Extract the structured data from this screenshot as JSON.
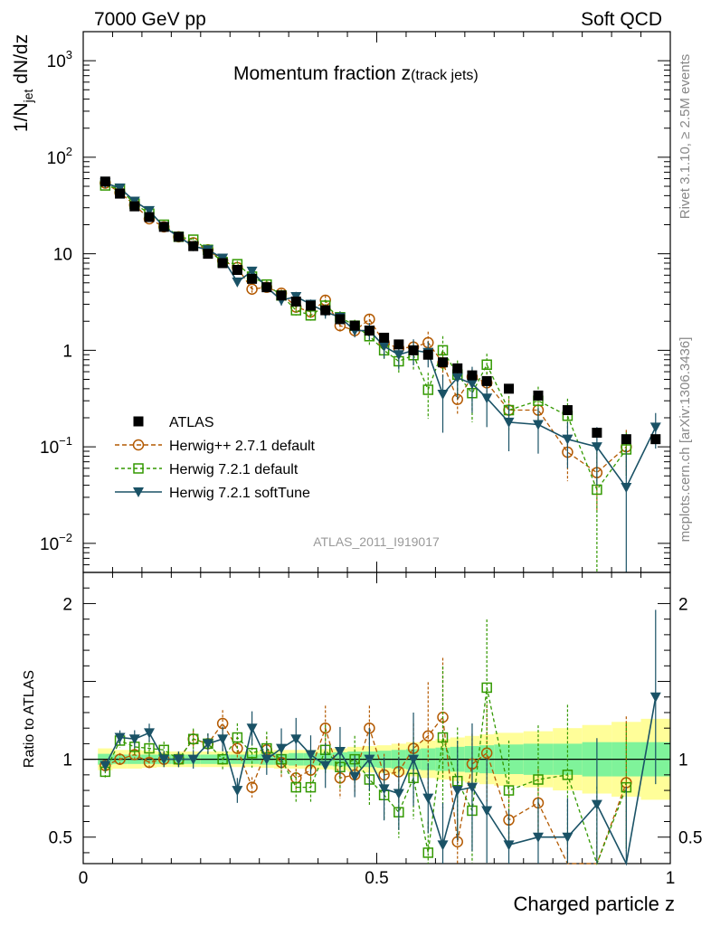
{
  "header": {
    "left": "7000 GeV pp",
    "right": "Soft QCD"
  },
  "side_text": {
    "rivet": "Rivet 3.1.10, ≥ 2.5M events",
    "mcplots": "mcplots.cern.ch [arXiv:1306.3436]"
  },
  "chart_data": [
    {
      "type": "scatter",
      "title": "Momentum fraction z",
      "title_sub": "(track jets)",
      "ylabel": "1/N",
      "ylabel_sub": "jet",
      "ylabel_rest": " dN/dz",
      "analysis": "ATLAS_2011_I919017",
      "yscale": "log",
      "xlim": [
        0,
        1
      ],
      "ylim": [
        0.005,
        2000
      ],
      "y_ticks": [
        {
          "label": "10",
          "exp": "3",
          "value": 1000
        },
        {
          "label": "10",
          "exp": "2",
          "value": 100
        },
        {
          "label": "10",
          "exp": "",
          "value": 10
        },
        {
          "label": "1",
          "exp": "",
          "value": 1
        },
        {
          "label": "10",
          "exp": "−1",
          "value": 0.1
        },
        {
          "label": "10",
          "exp": "−2",
          "value": 0.01
        }
      ],
      "legend_position": "lower-left",
      "x": [
        0.0375,
        0.0625,
        0.0875,
        0.1125,
        0.1375,
        0.1625,
        0.1875,
        0.2125,
        0.2375,
        0.2625,
        0.2875,
        0.3125,
        0.3375,
        0.3625,
        0.3875,
        0.4125,
        0.4375,
        0.4625,
        0.4875,
        0.5125,
        0.5375,
        0.5625,
        0.5875,
        0.6125,
        0.6375,
        0.6625,
        0.6875,
        0.725,
        0.775,
        0.825,
        0.875,
        0.925,
        0.975
      ],
      "series": [
        {
          "name": "ATLAS",
          "style": "data",
          "color": "#000000",
          "values": [
            56,
            42,
            31,
            24,
            19,
            15,
            12,
            10,
            8,
            6.8,
            5.5,
            4.5,
            3.7,
            3.2,
            2.9,
            2.6,
            2.1,
            1.8,
            1.6,
            1.35,
            1.15,
            1.0,
            0.9,
            0.75,
            0.65,
            0.55,
            0.48,
            0.4,
            0.34,
            0.24,
            0.14,
            0.12,
            0.12
          ],
          "err": [
            0,
            0,
            0,
            0,
            0,
            0,
            0,
            0,
            0,
            0,
            0,
            0,
            0,
            0,
            0,
            0,
            0,
            0,
            0,
            0,
            0,
            0,
            0,
            0,
            0,
            0,
            0,
            0,
            0,
            0,
            0,
            0,
            0
          ]
        },
        {
          "name": "Herwig++ 2.7.1 default",
          "style": "circle",
          "color": "#b35900",
          "values": [
            54,
            43,
            32,
            23,
            19,
            15,
            13,
            11,
            8.5,
            7.2,
            4.3,
            4.5,
            3.9,
            2.8,
            2.5,
            3.3,
            1.8,
            1.6,
            2.1,
            1.2,
            1.05,
            1.08,
            1.2,
            0.74,
            0.31,
            0.53,
            0.46,
            0.24,
            0.24,
            0.088,
            0.054,
            0.1,
            null
          ],
          "err": [
            0.04,
            0.04,
            0.04,
            0.04,
            0.05,
            0.05,
            0.05,
            0.06,
            0.07,
            0.07,
            0.08,
            0.08,
            0.1,
            0.1,
            0.1,
            0.12,
            0.15,
            0.12,
            0.12,
            0.15,
            0.2,
            0.15,
            0.3,
            0.3,
            0.3,
            0.2,
            0.3,
            0.3,
            0.3,
            0.5,
            0.6,
            0.5,
            0
          ]
        },
        {
          "name": "Herwig 7.2.1 default",
          "style": "square",
          "color": "#339900",
          "values": [
            51,
            47,
            33,
            26,
            20,
            15,
            14,
            11,
            8.2,
            7.8,
            5.8,
            4.8,
            3.7,
            2.6,
            2.3,
            2.9,
            2.2,
            1.8,
            1.4,
            1.0,
            0.77,
            0.89,
            0.39,
            1.0,
            0.56,
            0.36,
            0.71,
            0.24,
            0.3,
            0.21,
            0.036,
            0.094,
            null
          ],
          "err": [
            0.04,
            0.04,
            0.05,
            0.05,
            0.05,
            0.05,
            0.06,
            0.06,
            0.07,
            0.08,
            0.09,
            0.1,
            0.1,
            0.12,
            0.12,
            0.15,
            0.15,
            0.15,
            0.2,
            0.2,
            0.25,
            0.3,
            0.5,
            0.4,
            0.4,
            0.5,
            0.3,
            0.4,
            0.4,
            0.5,
            1.5,
            0.5,
            0
          ]
        },
        {
          "name": "Herwig 7.2.1 softTune",
          "style": "triangle",
          "color": "#1a5266",
          "values": [
            54,
            48,
            35,
            28,
            19,
            15,
            12,
            11,
            9,
            5.1,
            6.6,
            4.5,
            3.3,
            3.6,
            3.0,
            2.5,
            2.2,
            1.6,
            1.6,
            1.1,
            0.9,
            1.0,
            0.95,
            0.35,
            0.52,
            0.45,
            0.32,
            0.18,
            0.17,
            0.12,
            0.1,
            0.038,
            0.16
          ],
          "err": [
            0.04,
            0.04,
            0.05,
            0.05,
            0.05,
            0.05,
            0.06,
            0.06,
            0.07,
            0.1,
            0.09,
            0.1,
            0.12,
            0.12,
            0.12,
            0.15,
            0.15,
            0.15,
            0.2,
            0.25,
            0.3,
            0.3,
            0.3,
            0.6,
            0.4,
            0.5,
            0.5,
            0.5,
            0.5,
            0.5,
            0.6,
            1.5,
            0.4
          ]
        }
      ]
    },
    {
      "type": "scatter",
      "ylabel": "Ratio to ATLAS",
      "xlabel": "Charged particle z",
      "xlim": [
        0,
        1
      ],
      "ylim": [
        0.33,
        2.2
      ],
      "x_ticks": [
        {
          "label": "0",
          "value": 0
        },
        {
          "label": "0.5",
          "value": 0.5
        },
        {
          "label": "1",
          "value": 1
        }
      ],
      "y_ticks": [
        {
          "label": "2",
          "value": 2
        },
        {
          "label": "1",
          "value": 1
        },
        {
          "label": "0.5",
          "value": 0.5
        }
      ],
      "band_colors": {
        "inner": "#7ff39a",
        "outer": "#fffe99"
      },
      "band_edges": [
        0.025,
        0.05,
        0.075,
        0.1,
        0.125,
        0.15,
        0.175,
        0.2,
        0.225,
        0.25,
        0.275,
        0.3,
        0.325,
        0.35,
        0.375,
        0.4,
        0.425,
        0.45,
        0.475,
        0.5,
        0.525,
        0.55,
        0.575,
        0.6,
        0.625,
        0.65,
        0.675,
        0.7,
        0.75,
        0.8,
        0.85,
        0.9,
        0.95,
        1.0
      ],
      "band_inner": [
        0.035,
        0.03,
        0.03,
        0.03,
        0.03,
        0.03,
        0.03,
        0.03,
        0.03,
        0.03,
        0.03,
        0.035,
        0.035,
        0.04,
        0.04,
        0.04,
        0.045,
        0.05,
        0.05,
        0.055,
        0.06,
        0.065,
        0.07,
        0.075,
        0.08,
        0.085,
        0.09,
        0.095,
        0.1,
        0.1,
        0.11,
        0.11,
        0.11
      ],
      "band_outer": [
        0.07,
        0.06,
        0.06,
        0.055,
        0.05,
        0.05,
        0.05,
        0.05,
        0.05,
        0.05,
        0.05,
        0.055,
        0.06,
        0.06,
        0.06,
        0.065,
        0.07,
        0.08,
        0.085,
        0.09,
        0.1,
        0.11,
        0.12,
        0.13,
        0.14,
        0.15,
        0.16,
        0.17,
        0.18,
        0.2,
        0.22,
        0.24,
        0.26
      ],
      "series": [
        {
          "name": "Herwig++ 2.7.1 default",
          "style": "circle",
          "color": "#b35900",
          "x": [
            0.0375,
            0.0625,
            0.0875,
            0.1125,
            0.1375,
            0.1625,
            0.1875,
            0.2125,
            0.2375,
            0.2625,
            0.2875,
            0.3125,
            0.3375,
            0.3625,
            0.3875,
            0.4125,
            0.4375,
            0.4625,
            0.4875,
            0.5125,
            0.5375,
            0.5625,
            0.5875,
            0.6125,
            0.6375,
            0.6625,
            0.6875,
            0.725,
            0.775,
            0.825,
            0.875,
            0.925
          ],
          "values": [
            0.96,
            1.0,
            1.03,
            0.98,
            1.0,
            1.0,
            1.13,
            1.1,
            1.23,
            1.07,
            0.82,
            1.06,
            0.98,
            0.88,
            0.93,
            1.2,
            0.88,
            0.9,
            1.2,
            0.9,
            0.92,
            1.07,
            1.15,
            1.27,
            0.47,
            0.97,
            1.04,
            0.61,
            0.72,
            0.33,
            0.33,
            0.85
          ],
          "err": [
            0.04,
            0.04,
            0.04,
            0.04,
            0.05,
            0.05,
            0.05,
            0.06,
            0.07,
            0.07,
            0.08,
            0.08,
            0.1,
            0.1,
            0.1,
            0.12,
            0.15,
            0.12,
            0.12,
            0.15,
            0.2,
            0.15,
            0.3,
            0.3,
            0.3,
            0.2,
            0.3,
            0.3,
            0.3,
            0.5,
            0.6,
            0.5
          ]
        },
        {
          "name": "Herwig 7.2.1 default",
          "style": "square",
          "color": "#339900",
          "x": [
            0.0375,
            0.0625,
            0.0875,
            0.1125,
            0.1375,
            0.1625,
            0.1875,
            0.2125,
            0.2375,
            0.2625,
            0.2875,
            0.3125,
            0.3375,
            0.3625,
            0.3875,
            0.4125,
            0.4375,
            0.4625,
            0.4875,
            0.5125,
            0.5375,
            0.5625,
            0.5875,
            0.6125,
            0.6375,
            0.6625,
            0.6875,
            0.725,
            0.775,
            0.825,
            0.875,
            0.925
          ],
          "values": [
            0.92,
            1.12,
            1.08,
            1.07,
            1.06,
            1.0,
            1.13,
            1.1,
            1.0,
            1.14,
            1.04,
            1.07,
            1.0,
            0.82,
            0.82,
            1.06,
            0.95,
            1.0,
            0.87,
            0.77,
            0.66,
            0.88,
            0.4,
            1.14,
            0.86,
            0.67,
            1.46,
            0.8,
            0.87,
            0.9,
            0.33,
            0.82
          ],
          "err": [
            0.04,
            0.04,
            0.05,
            0.05,
            0.05,
            0.05,
            0.06,
            0.06,
            0.07,
            0.08,
            0.09,
            0.1,
            0.1,
            0.12,
            0.12,
            0.15,
            0.15,
            0.15,
            0.2,
            0.2,
            0.25,
            0.3,
            0.5,
            0.4,
            0.4,
            0.5,
            0.3,
            0.4,
            0.4,
            0.5,
            1.5,
            0.5
          ]
        },
        {
          "name": "Herwig 7.2.1 softTune",
          "style": "triangle",
          "color": "#1a5266",
          "x": [
            0.0375,
            0.0625,
            0.0875,
            0.1125,
            0.1375,
            0.1625,
            0.1875,
            0.2125,
            0.2375,
            0.2625,
            0.2875,
            0.3125,
            0.3375,
            0.3625,
            0.3875,
            0.4125,
            0.4375,
            0.4625,
            0.4875,
            0.5125,
            0.5375,
            0.5625,
            0.5875,
            0.6125,
            0.6375,
            0.6625,
            0.6875,
            0.725,
            0.775,
            0.825,
            0.875,
            0.925,
            0.975
          ],
          "values": [
            0.96,
            1.14,
            1.13,
            1.17,
            1.0,
            1.0,
            1.0,
            1.1,
            1.13,
            0.8,
            1.2,
            1.0,
            1.07,
            1.13,
            1.03,
            0.96,
            1.05,
            0.89,
            1.0,
            0.81,
            0.78,
            1.0,
            0.75,
            0.45,
            0.8,
            0.82,
            0.67,
            0.45,
            0.5,
            0.5,
            0.71,
            0.33,
            1.4
          ],
          "err": [
            0.04,
            0.04,
            0.05,
            0.05,
            0.05,
            0.05,
            0.06,
            0.06,
            0.07,
            0.1,
            0.09,
            0.1,
            0.12,
            0.12,
            0.12,
            0.15,
            0.15,
            0.15,
            0.2,
            0.25,
            0.3,
            0.3,
            0.3,
            0.6,
            0.4,
            0.5,
            0.5,
            0.5,
            0.5,
            0.5,
            0.6,
            1.5,
            0.4
          ]
        }
      ]
    }
  ]
}
